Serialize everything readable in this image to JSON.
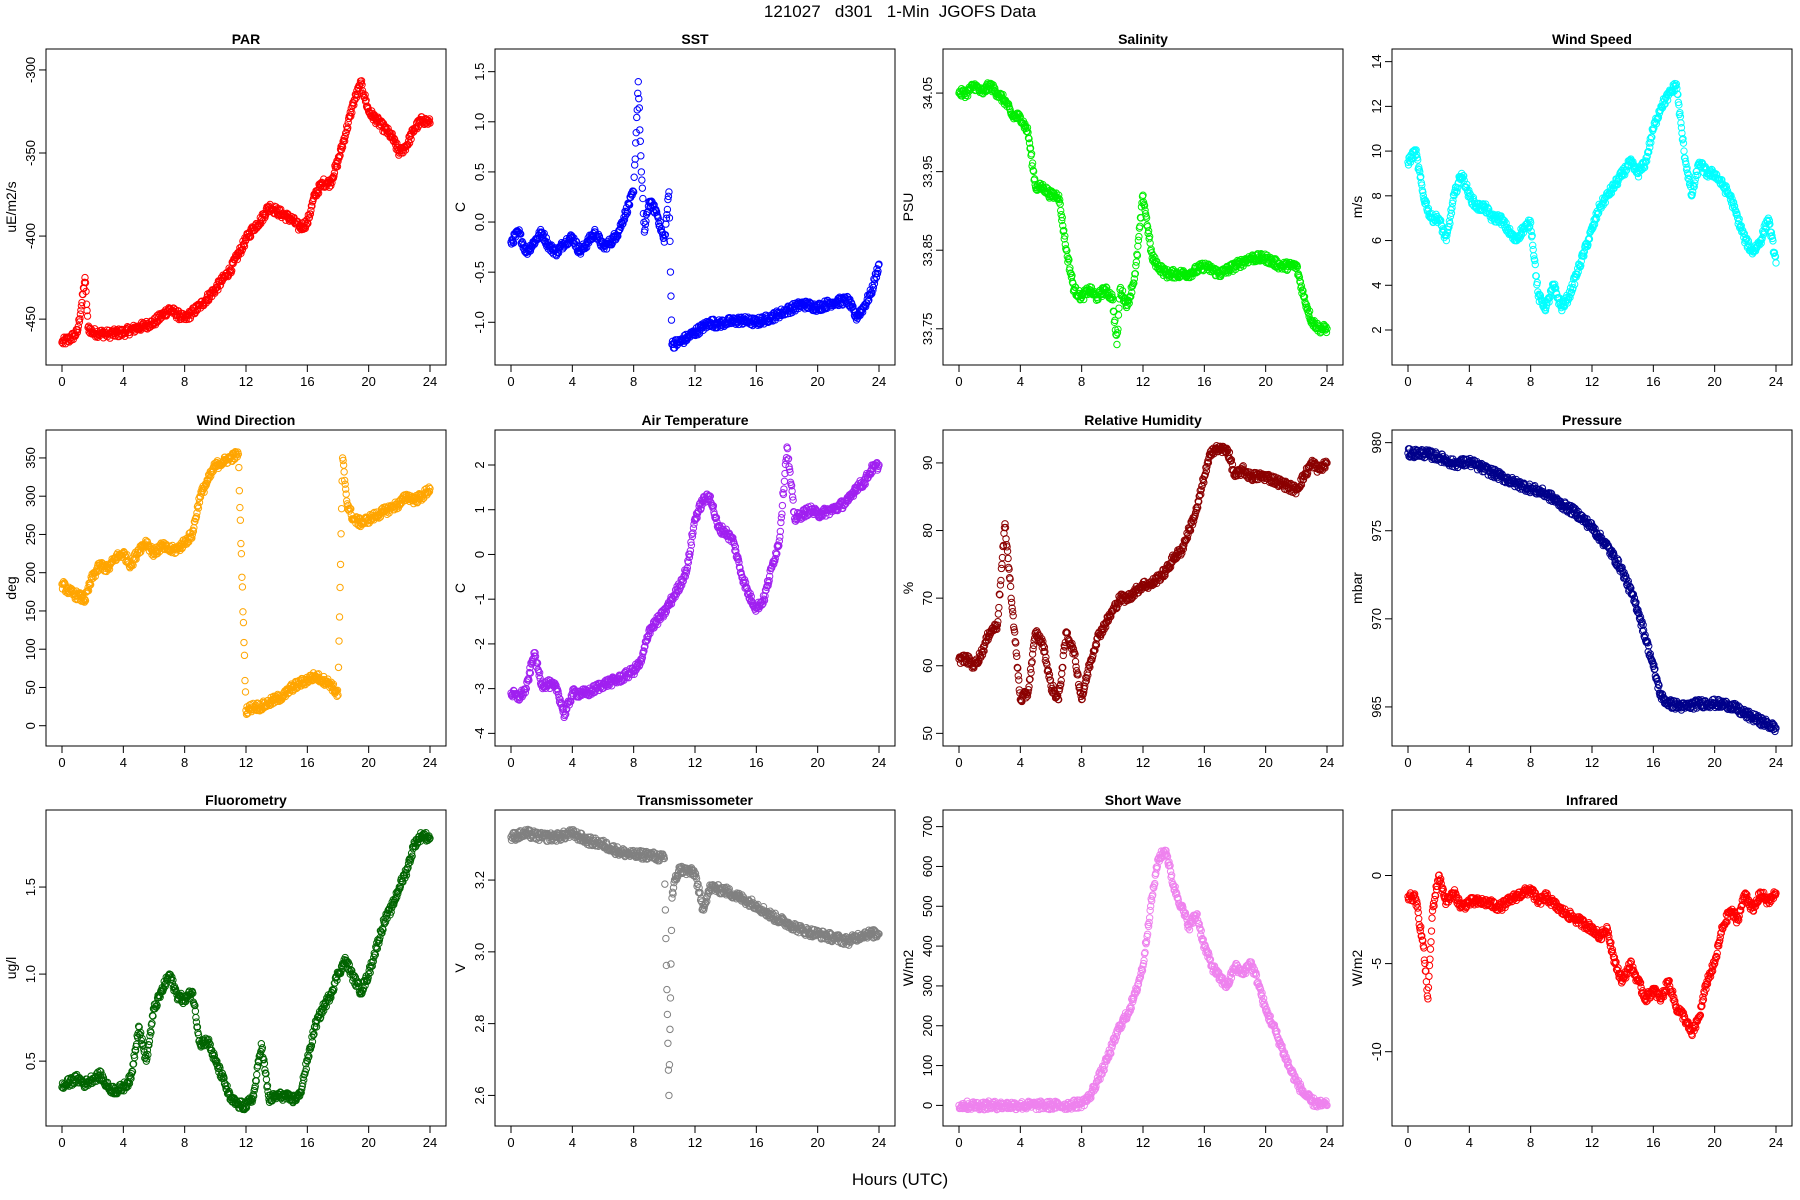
{
  "figure": {
    "title": "121027   d301   1-Min  JGOFS Data",
    "xlabel": "Hours (UTC)"
  },
  "chart_data": [
    {
      "type": "scatter",
      "title": "PAR",
      "ylabel": "uE/m2/s",
      "color": "#ff0000",
      "xlim": [
        0,
        24
      ],
      "ylim": [
        -470,
        -295
      ],
      "xticks": [
        0,
        4,
        8,
        12,
        16,
        20,
        24
      ],
      "yticks": [
        -450,
        -400,
        -350,
        -300
      ],
      "ytick_labels": [
        "-450",
        "-400",
        "-350",
        "-300"
      ],
      "x": [
        0,
        0.5,
        1,
        1.3,
        1.5,
        1.7,
        2,
        3,
        4,
        5,
        6,
        7,
        8,
        9,
        10,
        11,
        12,
        12.5,
        13,
        13.5,
        14,
        15,
        15.5,
        16,
        16.5,
        17,
        17.5,
        18,
        18.5,
        19,
        19.5,
        20,
        20.5,
        21,
        21.5,
        22,
        22.5,
        23,
        23.5,
        24
      ],
      "y": [
        -464,
        -462,
        -458,
        -440,
        -425,
        -455,
        -458,
        -459,
        -458,
        -455,
        -452,
        -444,
        -450,
        -442,
        -432,
        -420,
        -402,
        -395,
        -390,
        -382,
        -385,
        -390,
        -395,
        -392,
        -375,
        -368,
        -368,
        -355,
        -338,
        -320,
        -308,
        -325,
        -330,
        -335,
        -340,
        -350,
        -345,
        -335,
        -330,
        -332
      ]
    },
    {
      "type": "scatter",
      "title": "SST",
      "ylabel": "C",
      "color": "#0000ff",
      "xlim": [
        0,
        24
      ],
      "ylim": [
        -1.3,
        1.6
      ],
      "xticks": [
        0,
        4,
        8,
        12,
        16,
        20,
        24
      ],
      "yticks": [
        -1,
        -0.5,
        0,
        0.5,
        1,
        1.5
      ],
      "ytick_labels": [
        "-1.0",
        "-0.5",
        "0.0",
        "0.5",
        "1.0",
        "1.5"
      ],
      "x": [
        0,
        0.5,
        1,
        1.5,
        2,
        2.5,
        3,
        3.5,
        4,
        4.5,
        5,
        5.5,
        6,
        6.5,
        7,
        7.5,
        8,
        8.3,
        8.5,
        8.7,
        9,
        9.5,
        10,
        10.3,
        10.5,
        11,
        11.5,
        12,
        12.5,
        13,
        13.5,
        14,
        15,
        16,
        17,
        18,
        19,
        20,
        21,
        22,
        22.5,
        23,
        23.5,
        24
      ],
      "y": [
        -0.2,
        -0.1,
        -0.3,
        -0.2,
        -0.1,
        -0.25,
        -0.3,
        -0.2,
        -0.15,
        -0.3,
        -0.2,
        -0.1,
        -0.25,
        -0.2,
        -0.1,
        0.1,
        0.3,
        1.4,
        0.5,
        -0.1,
        0.2,
        0.1,
        -0.2,
        0.3,
        -1.22,
        -1.2,
        -1.15,
        -1.1,
        -1.05,
        -1,
        -1.02,
        -1,
        -0.98,
        -1,
        -0.95,
        -0.88,
        -0.82,
        -0.85,
        -0.8,
        -0.78,
        -0.95,
        -0.85,
        -0.7,
        -0.42
      ]
    },
    {
      "type": "scatter",
      "title": "Salinity",
      "ylabel": "PSU",
      "color": "#00ee00",
      "xlim": [
        0,
        24
      ],
      "ylim": [
        33.72,
        34.09
      ],
      "xticks": [
        0,
        4,
        8,
        12,
        16,
        20,
        24
      ],
      "yticks": [
        33.75,
        33.85,
        33.95,
        34.05
      ],
      "ytick_labels": [
        "33.75",
        "33.85",
        "33.95",
        "34.05"
      ],
      "x": [
        0,
        0.5,
        1,
        1.5,
        2,
        2.5,
        3,
        3.5,
        4,
        4.5,
        5,
        5.5,
        6,
        6.5,
        7,
        7.5,
        8,
        8.5,
        9,
        9.5,
        10,
        10.3,
        10.5,
        11,
        11.5,
        12,
        12.3,
        12.6,
        13,
        13.5,
        14,
        15,
        16,
        17,
        18,
        19,
        20,
        21,
        22,
        22.5,
        23,
        23.5,
        24
      ],
      "y": [
        34.05,
        34.05,
        34.06,
        34.05,
        34.06,
        34.05,
        34.04,
        34.02,
        34.02,
        34.0,
        33.93,
        33.93,
        33.92,
        33.92,
        33.85,
        33.8,
        33.79,
        33.8,
        33.79,
        33.8,
        33.79,
        33.73,
        33.8,
        33.78,
        33.82,
        33.92,
        33.88,
        33.84,
        33.83,
        33.82,
        33.82,
        33.82,
        33.83,
        33.82,
        33.83,
        33.84,
        33.84,
        33.83,
        33.83,
        33.79,
        33.76,
        33.75,
        33.75
      ]
    },
    {
      "type": "scatter",
      "title": "Wind Speed",
      "ylabel": "m/s",
      "color": "#00ffff",
      "xlim": [
        0,
        24
      ],
      "ylim": [
        1,
        14
      ],
      "xticks": [
        0,
        4,
        8,
        12,
        16,
        20,
        24
      ],
      "yticks": [
        2,
        4,
        6,
        8,
        10,
        12,
        14
      ],
      "ytick_labels": [
        "2",
        "4",
        "6",
        "8",
        "10",
        "12",
        "14"
      ],
      "x": [
        0,
        0.5,
        1,
        1.5,
        2,
        2.5,
        3,
        3.5,
        4,
        4.5,
        5,
        5.5,
        6,
        6.5,
        7,
        7.5,
        8,
        8.5,
        9,
        9.5,
        10,
        10.5,
        11,
        11.5,
        12,
        12.5,
        13,
        13.5,
        14,
        14.5,
        15,
        15.5,
        16,
        16.5,
        17,
        17.5,
        18,
        18.5,
        19,
        19.5,
        20,
        20.5,
        21,
        21.5,
        22,
        22.5,
        23,
        23.5,
        24
      ],
      "y": [
        9.5,
        10,
        8,
        7,
        7,
        6,
        8,
        9,
        8,
        7.5,
        7.5,
        7,
        7,
        6.5,
        6,
        6.5,
        6.8,
        3.5,
        3,
        4,
        3,
        3.5,
        4.5,
        5.5,
        6.5,
        7.5,
        8,
        8.5,
        9,
        9.5,
        9,
        9.5,
        11,
        12,
        12.5,
        13,
        10,
        8,
        9.5,
        9,
        9,
        8.5,
        8,
        7,
        6,
        5.5,
        6,
        7,
        5
      ]
    },
    {
      "type": "scatter",
      "title": "Wind Direction",
      "ylabel": "deg",
      "color": "#ffa500",
      "xlim": [
        0,
        24
      ],
      "ylim": [
        -10,
        370
      ],
      "xticks": [
        0,
        4,
        8,
        12,
        16,
        20,
        24
      ],
      "yticks": [
        0,
        50,
        100,
        150,
        200,
        250,
        300,
        350
      ],
      "ytick_labels": [
        "0",
        "50",
        "100",
        "150",
        "200",
        "250",
        "300",
        "350"
      ],
      "x": [
        0,
        0.5,
        1,
        1.5,
        2,
        2.5,
        3,
        3.5,
        4,
        4.5,
        5,
        5.5,
        6,
        6.5,
        7,
        7.5,
        8,
        8.5,
        9,
        9.5,
        10,
        10.5,
        11,
        11.5,
        12,
        12.5,
        13,
        13.5,
        14,
        14.5,
        15,
        15.5,
        16,
        16.5,
        17,
        17.5,
        18,
        18.3,
        18.6,
        19,
        19.5,
        20,
        20.5,
        21,
        21.5,
        22,
        22.5,
        23,
        23.5,
        24
      ],
      "y": [
        185,
        175,
        170,
        165,
        195,
        210,
        205,
        220,
        225,
        210,
        230,
        240,
        225,
        235,
        230,
        230,
        240,
        250,
        300,
        320,
        340,
        345,
        350,
        355,
        20,
        25,
        25,
        30,
        35,
        40,
        50,
        55,
        60,
        65,
        60,
        55,
        40,
        350,
        290,
        270,
        265,
        270,
        275,
        280,
        285,
        290,
        300,
        295,
        300,
        310
      ]
    },
    {
      "type": "scatter",
      "title": "Air Temperature",
      "ylabel": "C",
      "color": "#a020f0",
      "xlim": [
        0,
        24
      ],
      "ylim": [
        -4,
        2.5
      ],
      "xticks": [
        0,
        4,
        8,
        12,
        16,
        20,
        24
      ],
      "yticks": [
        -4,
        -3,
        -2,
        -1,
        0,
        1,
        2
      ],
      "ytick_labels": [
        "-4",
        "-3",
        "-2",
        "-1",
        "0",
        "1",
        "2"
      ],
      "x": [
        0,
        0.5,
        1,
        1.5,
        2,
        2.5,
        3,
        3.5,
        4,
        5,
        6,
        7,
        8,
        8.5,
        9,
        9.5,
        10,
        10.5,
        11,
        11.5,
        12,
        12.5,
        13,
        13.5,
        14,
        14.5,
        15,
        15.5,
        16,
        16.5,
        17,
        17.5,
        18,
        18.5,
        19,
        19.5,
        20,
        21,
        22,
        22.5,
        23,
        23.5,
        24
      ],
      "y": [
        -3.1,
        -3.2,
        -3,
        -2.2,
        -2.9,
        -2.9,
        -3,
        -3.6,
        -3.1,
        -3.1,
        -2.9,
        -2.8,
        -2.6,
        -2.4,
        -1.7,
        -1.5,
        -1.3,
        -1,
        -0.7,
        -0.3,
        0.8,
        1.2,
        1.3,
        0.6,
        0.5,
        0.3,
        -0.4,
        -0.9,
        -1.2,
        -1,
        -0.3,
        0.3,
        2.4,
        0.8,
        0.9,
        1,
        0.9,
        1,
        1.2,
        1.5,
        1.6,
        1.9,
        2
      ]
    },
    {
      "type": "scatter",
      "title": "Relative Humidity",
      "ylabel": "%",
      "color": "#8b0000",
      "xlim": [
        0,
        24
      ],
      "ylim": [
        50,
        93
      ],
      "xticks": [
        0,
        4,
        8,
        12,
        16,
        20,
        24
      ],
      "yticks": [
        50,
        60,
        70,
        80,
        90
      ],
      "ytick_labels": [
        "50",
        "60",
        "70",
        "80",
        "90"
      ],
      "x": [
        0,
        0.5,
        1,
        1.5,
        2,
        2.5,
        3,
        3.5,
        4,
        4.5,
        5,
        5.5,
        6,
        6.5,
        7,
        7.5,
        8,
        8.5,
        9,
        9.5,
        10,
        10.5,
        11,
        11.5,
        12,
        12.5,
        13,
        13.5,
        14,
        14.5,
        15,
        15.5,
        16,
        16.5,
        17,
        17.5,
        18,
        18.5,
        19,
        19.5,
        20,
        21,
        22,
        22.5,
        23,
        23.5,
        24
      ],
      "y": [
        61,
        61,
        60,
        62,
        65,
        66,
        81,
        68,
        55,
        56,
        65,
        63,
        57,
        55,
        65,
        62,
        55,
        60,
        64,
        66,
        68,
        70,
        70,
        71,
        72,
        72,
        73,
        74,
        76,
        77,
        80,
        83,
        88,
        92,
        92,
        92,
        88,
        89,
        88,
        88,
        88,
        87,
        86,
        88,
        90,
        89,
        90
      ]
    },
    {
      "type": "scatter",
      "title": "Pressure",
      "ylabel": "mbar",
      "color": "#00008b",
      "xlim": [
        0,
        24
      ],
      "ylim": [
        963.5,
        980
      ],
      "xticks": [
        0,
        4,
        8,
        12,
        16,
        20,
        24
      ],
      "yticks": [
        965,
        970,
        975,
        980
      ],
      "ytick_labels": [
        "965",
        "970",
        "975",
        "980"
      ],
      "x": [
        0,
        1,
        2,
        3,
        4,
        5,
        6,
        7,
        8,
        9,
        10,
        11,
        12,
        13,
        14,
        15,
        16,
        16.5,
        17,
        18,
        19,
        20,
        21,
        22,
        23,
        24
      ],
      "y": [
        979.4,
        979.4,
        979.2,
        978.8,
        978.9,
        978.5,
        978.1,
        977.7,
        977.4,
        977.1,
        976.5,
        976,
        975.2,
        974.1,
        972.7,
        970.5,
        967.3,
        965.6,
        965.2,
        965,
        965.2,
        965.2,
        965.1,
        964.6,
        964.2,
        963.8
      ]
    },
    {
      "type": "scatter",
      "title": "Fluorometry",
      "ylabel": "ug/l",
      "color": "#006400",
      "xlim": [
        0,
        24
      ],
      "ylim": [
        0.2,
        1.87
      ],
      "xticks": [
        0,
        4,
        8,
        12,
        16,
        20,
        24
      ],
      "yticks": [
        0.5,
        1,
        1.5
      ],
      "ytick_labels": [
        "0.5",
        "1.0",
        "1.5"
      ],
      "x": [
        0,
        0.5,
        1,
        1.5,
        2,
        2.5,
        3,
        3.5,
        4,
        4.5,
        5,
        5.5,
        6,
        6.5,
        7,
        7.5,
        8,
        8.5,
        9,
        9.5,
        10,
        10.5,
        11,
        11.5,
        12,
        12.5,
        13,
        13.5,
        14,
        14.5,
        15,
        15.5,
        16,
        16.5,
        17,
        17.5,
        18,
        18.5,
        19,
        19.5,
        20,
        20.5,
        21,
        21.5,
        22,
        22.5,
        23,
        23.5,
        24
      ],
      "y": [
        0.35,
        0.38,
        0.4,
        0.37,
        0.4,
        0.42,
        0.35,
        0.33,
        0.35,
        0.4,
        0.7,
        0.5,
        0.8,
        0.9,
        1,
        0.88,
        0.85,
        0.9,
        0.6,
        0.62,
        0.5,
        0.4,
        0.28,
        0.25,
        0.24,
        0.3,
        0.6,
        0.28,
        0.3,
        0.3,
        0.28,
        0.3,
        0.5,
        0.7,
        0.8,
        0.88,
        1,
        1.08,
        0.98,
        0.9,
        1,
        1.15,
        1.3,
        1.38,
        1.5,
        1.6,
        1.75,
        1.8,
        1.78
      ]
    },
    {
      "type": "scatter",
      "title": "Transmissometer",
      "ylabel": "V",
      "color": "#808080",
      "xlim": [
        0,
        24
      ],
      "ylim": [
        2.55,
        3.36
      ],
      "xticks": [
        0,
        4,
        8,
        12,
        16,
        20,
        24
      ],
      "yticks": [
        2.6,
        2.8,
        3,
        3.2
      ],
      "ytick_labels": [
        "2.6",
        "2.8",
        "3.0",
        "3.2"
      ],
      "x": [
        0,
        1,
        2,
        3,
        4,
        5,
        6,
        7,
        8,
        9,
        10,
        10.3,
        10.5,
        10.7,
        11,
        12,
        12.5,
        13,
        14,
        15,
        16,
        17,
        18,
        19,
        20,
        21,
        22,
        23,
        24
      ],
      "y": [
        3.32,
        3.33,
        3.32,
        3.32,
        3.33,
        3.31,
        3.3,
        3.28,
        3.27,
        3.27,
        3.26,
        2.6,
        3.15,
        3.2,
        3.23,
        3.22,
        3.12,
        3.18,
        3.17,
        3.15,
        3.13,
        3.1,
        3.08,
        3.06,
        3.05,
        3.04,
        3.03,
        3.05,
        3.05
      ]
    },
    {
      "type": "scatter",
      "title": "Short Wave",
      "ylabel": "W/m2",
      "color": "#ee82ee",
      "xlim": [
        0,
        24
      ],
      "ylim": [
        -20,
        710
      ],
      "xticks": [
        0,
        4,
        8,
        12,
        16,
        20,
        24
      ],
      "yticks": [
        0,
        100,
        200,
        300,
        400,
        500,
        600,
        700
      ],
      "ytick_labels": [
        "0",
        "100",
        "200",
        "300",
        "400",
        "500",
        "600",
        "700"
      ],
      "x": [
        0,
        1,
        2,
        3,
        4,
        5,
        6,
        7,
        8,
        8.5,
        9,
        9.5,
        10,
        10.5,
        11,
        11.5,
        12,
        12.5,
        13,
        13.5,
        14,
        14.5,
        15,
        15.5,
        16,
        16.5,
        17,
        17.5,
        18,
        18.5,
        19,
        19.5,
        20,
        20.5,
        21,
        21.5,
        22,
        22.5,
        23,
        23.5,
        24
      ],
      "y": [
        0,
        0,
        0,
        0,
        0,
        0,
        0,
        0,
        5,
        20,
        60,
        100,
        150,
        200,
        230,
        280,
        350,
        500,
        620,
        640,
        550,
        500,
        450,
        480,
        400,
        350,
        320,
        300,
        350,
        330,
        360,
        310,
        240,
        200,
        150,
        100,
        60,
        30,
        10,
        3,
        0
      ]
    },
    {
      "type": "scatter",
      "title": "Infrared",
      "ylabel": "W/m2",
      "color": "#ff0000",
      "xlim": [
        0,
        24
      ],
      "ylim": [
        -13.5,
        3
      ],
      "xticks": [
        0,
        4,
        8,
        12,
        16,
        20,
        24
      ],
      "yticks": [
        -10,
        -5,
        0
      ],
      "ytick_labels": [
        "-10",
        "-5",
        "0"
      ],
      "x": [
        0,
        0.5,
        1,
        1.3,
        1.6,
        2,
        2.5,
        3,
        3.5,
        4,
        5,
        6,
        7,
        8,
        8.5,
        9,
        10,
        11,
        12,
        12.5,
        13,
        13.5,
        14,
        14.5,
        15,
        15.5,
        16,
        16.5,
        17,
        17.5,
        18,
        18.5,
        19,
        19.5,
        20,
        20.5,
        21,
        21.5,
        22,
        22.5,
        23,
        23.5,
        24
      ],
      "y": [
        -1.2,
        -1.3,
        -4,
        -7,
        -2,
        0,
        -1.5,
        -1,
        -1.8,
        -1.5,
        -1.5,
        -1.8,
        -1.2,
        -0.8,
        -1.5,
        -1.2,
        -2,
        -2.5,
        -3,
        -3.5,
        -3,
        -5,
        -6,
        -5,
        -6,
        -7,
        -6.5,
        -7,
        -6,
        -7.5,
        -8,
        -9,
        -8,
        -6,
        -5,
        -3,
        -2,
        -2.5,
        -1,
        -2,
        -1,
        -1.5,
        -1
      ]
    }
  ]
}
